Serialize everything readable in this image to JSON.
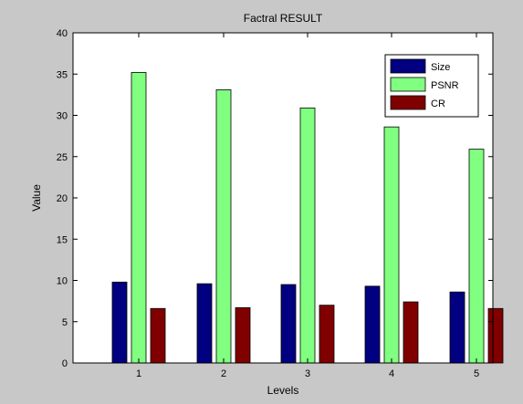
{
  "chart_data": {
    "type": "bar",
    "title": "Factral RESULT",
    "xlabel": "Levels",
    "ylabel": "Value",
    "categories": [
      "1",
      "2",
      "3",
      "4",
      "5"
    ],
    "ylim": [
      0,
      40
    ],
    "yticks": [
      0,
      5,
      10,
      15,
      20,
      25,
      30,
      35,
      40
    ],
    "grid": false,
    "legend_position": "top-right",
    "series": [
      {
        "name": "Size",
        "color": "#000080",
        "values": [
          9.8,
          9.6,
          9.5,
          9.3,
          8.6
        ]
      },
      {
        "name": "PSNR",
        "color": "#80ff80",
        "values": [
          35.2,
          33.1,
          30.9,
          28.6,
          25.9
        ]
      },
      {
        "name": "CR",
        "color": "#800000",
        "values": [
          6.6,
          6.7,
          7.0,
          7.4,
          6.6
        ]
      }
    ]
  }
}
